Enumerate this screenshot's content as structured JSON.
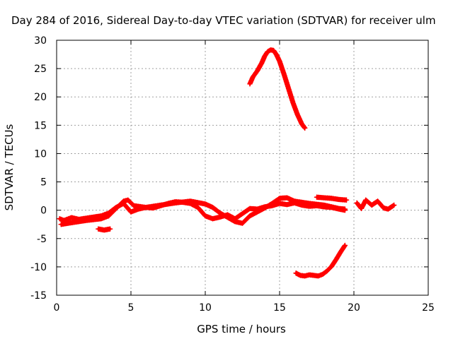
{
  "chart_data": {
    "type": "scatter",
    "title": "Day 284 of 2016, Sidereal Day-to-day VTEC variation (SDTVAR) for receiver ulm",
    "xlabel": "GPS time / hours",
    "ylabel": "SDTVAR / TECUs",
    "xlim": [
      0,
      25
    ],
    "ylim": [
      -15,
      30
    ],
    "xticks": [
      "0",
      "5",
      "10",
      "15",
      "20",
      "25"
    ],
    "yticks": [
      "-15",
      "-10",
      "-5",
      "0",
      "5",
      "10",
      "15",
      "20",
      "25",
      "30"
    ],
    "grid": true,
    "legend": "none",
    "marker": "plus",
    "color": "#ff0000",
    "series": [
      {
        "x": [
          0.2,
          0.5,
          1,
          1.5,
          2,
          2.5,
          3,
          3.5,
          4,
          4.5,
          5,
          5.5,
          6,
          6.5,
          7,
          7.5,
          8,
          8.5,
          9,
          9.5,
          10,
          10.5,
          11,
          11.5,
          12,
          12.5,
          13,
          13.5,
          14,
          14.5,
          15,
          15.5,
          16,
          16.5,
          17,
          17.5,
          18,
          18.5,
          19,
          19.4
        ],
        "y": [
          -1.5,
          -1.8,
          -1.3,
          -1.6,
          -1.4,
          -1.2,
          -1.0,
          -0.5,
          0.5,
          1.2,
          -0.3,
          0.2,
          0.5,
          0.4,
          0.8,
          1.2,
          1.5,
          1.4,
          1.2,
          0.5,
          -1.0,
          -1.5,
          -1.2,
          -0.8,
          -1.5,
          -0.6,
          0.3,
          0.2,
          0.6,
          0.8,
          1.2,
          1.0,
          1.3,
          0.9,
          0.7,
          0.8,
          0.6,
          0.5,
          0.2,
          0.0
        ]
      },
      {
        "x": [
          0.3,
          1,
          2,
          3,
          3.5,
          4,
          4.5,
          4.8,
          5.2,
          6,
          7,
          8,
          9,
          10,
          10.5,
          11,
          12,
          12.5,
          13,
          14,
          14.5,
          15,
          15.5,
          16,
          17,
          18,
          18.5,
          19,
          19.4
        ],
        "y": [
          -2.5,
          -2.2,
          -1.8,
          -1.5,
          -1.0,
          0.3,
          1.6,
          1.8,
          0.8,
          0.5,
          0.9,
          1.3,
          1.6,
          1.1,
          0.5,
          -0.5,
          -2.0,
          -2.3,
          -1.0,
          0.4,
          1.2,
          2.1,
          2.2,
          1.6,
          1.2,
          0.9,
          0.6,
          0.3,
          0.2
        ]
      },
      {
        "x": [
          2.8,
          3.0,
          3.2,
          3.4,
          3.6
        ],
        "y": [
          -3.3,
          -3.4,
          -3.5,
          -3.4,
          -3.3
        ]
      },
      {
        "x": [
          17.5,
          18,
          18.5,
          19,
          19.5
        ],
        "y": [
          2.3,
          2.2,
          2.1,
          1.9,
          1.8
        ]
      },
      {
        "x": [
          20.2,
          20.5,
          20.8,
          21.2,
          21.6,
          22,
          22.3,
          22.7
        ],
        "y": [
          1.3,
          0.3,
          1.8,
          0.9,
          1.6,
          0.4,
          0.2,
          0.9
        ]
      },
      {
        "x": [
          13,
          13.2,
          13.5,
          13.8,
          14,
          14.2,
          14.4,
          14.6,
          14.8,
          15,
          15.3,
          15.6,
          15.9,
          16.2,
          16.5,
          16.7
        ],
        "y": [
          22.3,
          23.5,
          24.6,
          26.0,
          27.2,
          28.0,
          28.3,
          28.2,
          27.4,
          26.3,
          24.0,
          21.5,
          19.0,
          16.9,
          15.2,
          14.5
        ]
      },
      {
        "x": [
          16.1,
          16.4,
          16.7,
          17,
          17.3,
          17.6,
          17.9,
          18.2,
          18.5,
          18.8,
          19.1,
          19.4
        ],
        "y": [
          -11.1,
          -11.5,
          -11.6,
          -11.4,
          -11.5,
          -11.6,
          -11.3,
          -10.7,
          -9.9,
          -8.7,
          -7.4,
          -6.2
        ]
      }
    ]
  }
}
